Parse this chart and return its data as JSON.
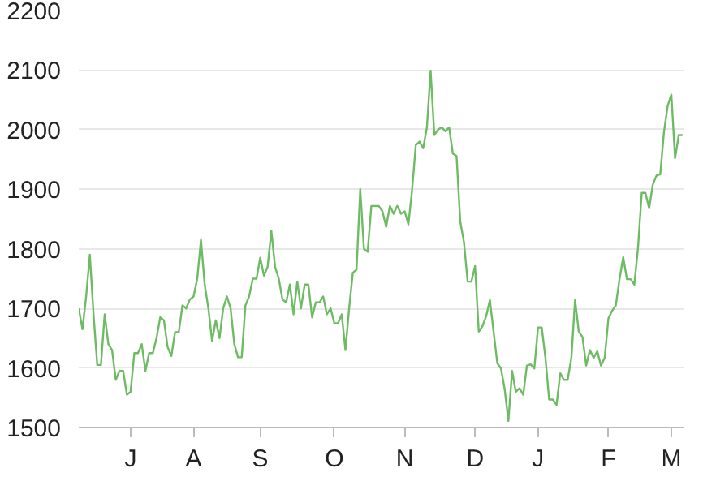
{
  "chart_data": {
    "type": "line",
    "categories": [
      null,
      null,
      null,
      null,
      null,
      null,
      null,
      null,
      null,
      null,
      null,
      null,
      null,
      null,
      "J",
      null,
      null,
      null,
      null,
      null,
      null,
      null,
      null,
      null,
      null,
      null,
      null,
      null,
      null,
      null,
      null,
      "A",
      null,
      null,
      null,
      null,
      null,
      null,
      null,
      null,
      null,
      null,
      null,
      null,
      null,
      null,
      null,
      null,
      null,
      "S",
      null,
      null,
      null,
      null,
      null,
      null,
      null,
      null,
      null,
      null,
      null,
      null,
      null,
      null,
      null,
      null,
      null,
      null,
      null,
      "O",
      null,
      null,
      null,
      null,
      null,
      null,
      null,
      null,
      null,
      null,
      null,
      null,
      null,
      null,
      null,
      null,
      null,
      null,
      "N",
      null,
      null,
      null,
      null,
      null,
      null,
      null,
      null,
      null,
      null,
      null,
      null,
      null,
      null,
      null,
      null,
      null,
      null,
      "D",
      null,
      null,
      null,
      null,
      null,
      null,
      null,
      null,
      null,
      null,
      null,
      null,
      null,
      null,
      null,
      null,
      "J",
      null,
      null,
      null,
      null,
      null,
      null,
      null,
      null,
      null,
      null,
      null,
      null,
      null,
      null,
      null,
      null,
      null,
      null,
      "F",
      null,
      null,
      null,
      null,
      null,
      null,
      null,
      null,
      null,
      null,
      null,
      null,
      null,
      null,
      null,
      null,
      "M",
      null,
      null,
      null
    ],
    "series": [
      {
        "color": "#6dbb63",
        "values": [
          1700,
          1665,
          1720,
          1790,
          1690,
          1605,
          1605,
          1690,
          1640,
          1630,
          1580,
          1595,
          1595,
          1555,
          1560,
          1625,
          1625,
          1640,
          1595,
          1625,
          1625,
          1650,
          1685,
          1680,
          1635,
          1620,
          1660,
          1660,
          1705,
          1700,
          1715,
          1720,
          1750,
          1815,
          1740,
          1700,
          1645,
          1680,
          1650,
          1700,
          1720,
          1700,
          1640,
          1618,
          1618,
          1705,
          1720,
          1750,
          1750,
          1785,
          1755,
          1770,
          1830,
          1770,
          1750,
          1715,
          1710,
          1740,
          1690,
          1745,
          1700,
          1740,
          1740,
          1685,
          1710,
          1710,
          1720,
          1690,
          1700,
          1675,
          1675,
          1690,
          1630,
          1700,
          1760,
          1765,
          1900,
          1800,
          1795,
          1872,
          1872,
          1872,
          1863,
          1837,
          1872,
          1859,
          1872,
          1859,
          1863,
          1841,
          1899,
          1974,
          1980,
          1969,
          2004,
          2099,
          1991,
          2000,
          2004,
          1997,
          2004,
          1960,
          1956,
          1846,
          1811,
          1745,
          1745,
          1771,
          1661,
          1670,
          1687,
          1714,
          1661,
          1608,
          1599,
          1564,
          1511,
          1595,
          1560,
          1566,
          1555,
          1604,
          1606,
          1599,
          1668,
          1668,
          1617,
          1547,
          1547,
          1538,
          1591,
          1580,
          1580,
          1617,
          1714,
          1661,
          1652,
          1604,
          1630,
          1617,
          1628,
          1604,
          1617,
          1683,
          1696,
          1705,
          1749,
          1786,
          1749,
          1749,
          1740,
          1802,
          1894,
          1894,
          1868,
          1908,
          1923,
          1925,
          1996,
          2040,
          2059,
          1952,
          1991,
          1991
        ]
      }
    ],
    "ylim": [
      1500,
      2200
    ],
    "yticks": [
      1500,
      1600,
      1700,
      1800,
      1900,
      2000,
      2100,
      2200
    ],
    "grid": "y",
    "marker": "none",
    "line_style": "solid"
  }
}
